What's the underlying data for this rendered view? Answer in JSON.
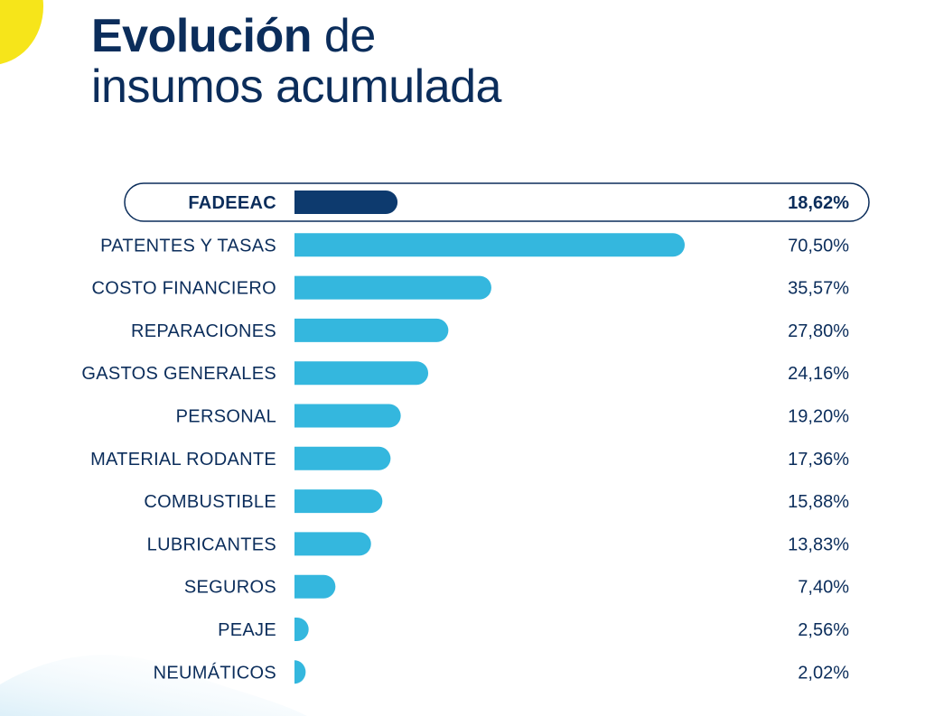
{
  "title": {
    "bold": "Evolución",
    "rest": " de",
    "line2": "insumos acumulada"
  },
  "colors": {
    "navy": "#0b2d5b",
    "highlight_bar": "#0d3a6e",
    "bar": "#34b7de",
    "accent_yellow": "#f6e51a"
  },
  "chart_data": {
    "type": "bar",
    "orientation": "horizontal",
    "highlight_category": "FADEEAC",
    "categories": [
      "FADEEAC",
      "PATENTES Y TASAS",
      "COSTO FINANCIERO",
      "REPARACIONES",
      "GASTOS GENERALES",
      "PERSONAL",
      "MATERIAL RODANTE",
      "COMBUSTIBLE",
      "LUBRICANTES",
      "SEGUROS",
      "PEAJE",
      "NEUMÁTICOS"
    ],
    "values": [
      18.62,
      70.5,
      35.57,
      27.8,
      24.16,
      19.2,
      17.36,
      15.88,
      13.83,
      7.4,
      2.56,
      2.02
    ],
    "value_labels": [
      "18,62%",
      "70,50%",
      "35,57%",
      "27,80%",
      "24,16%",
      "19,20%",
      "17,36%",
      "15,88%",
      "13,83%",
      "7,40%",
      "2,56%",
      "2,02%"
    ],
    "title": "Evolución de insumos acumulada",
    "xlabel": "",
    "ylabel": "",
    "xlim": [
      0,
      70.5
    ],
    "grid": false,
    "legend": "none"
  }
}
